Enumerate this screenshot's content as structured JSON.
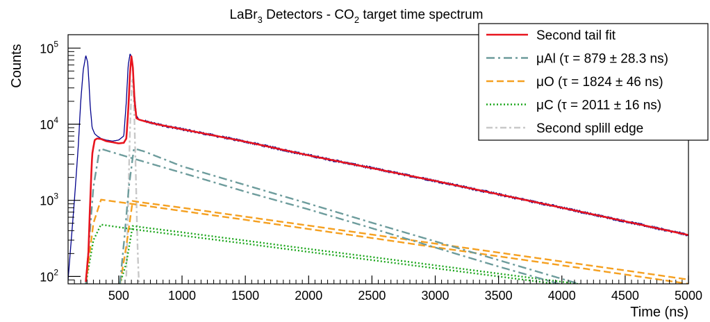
{
  "chart_data": {
    "type": "line",
    "title_main": "LaBr",
    "title_sub": "3",
    "title_mid": " Detectors - CO",
    "title_sub2": "2",
    "title_end": " target time spectrum",
    "xlabel": "Time (ns)",
    "ylabel": "Counts",
    "xlim": [
      100,
      5000
    ],
    "ylim": [
      80,
      150000
    ],
    "y_scale": "log",
    "x_ticks": [
      500,
      1000,
      1500,
      2000,
      2500,
      3000,
      3500,
      4000,
      4500,
      5000
    ],
    "x_tick_labels": [
      "500",
      "1000",
      "1500",
      "2000",
      "2500",
      "3000",
      "3500",
      "4000",
      "4500",
      "5000"
    ],
    "y_major_ticks": [
      100,
      1000,
      10000,
      100000
    ],
    "y_tick_bases": [
      "10",
      "10",
      "10",
      "10"
    ],
    "y_tick_exps": [
      "2",
      "3",
      "4",
      "5"
    ],
    "legend_position": "top-right",
    "colors": {
      "data": "#00008c",
      "fit": "#e8141e",
      "al": "#6d9c9c",
      "o": "#f5a020",
      "c": "#1aa51a",
      "edge": "#c8c8c8"
    },
    "series": [
      {
        "name": "",
        "key": "data",
        "style": "solid-noisy",
        "x": [
          100,
          150,
          180,
          200,
          220,
          240,
          255,
          265,
          275,
          290,
          310,
          330,
          360,
          400,
          450,
          500,
          540,
          560,
          575,
          590,
          605,
          620,
          640,
          660,
          700,
          800,
          1000,
          1500,
          2000,
          2500,
          3000,
          3500,
          4000,
          4500,
          5000
        ],
        "y": [
          90,
          1000,
          5000,
          20000,
          52000,
          80000,
          65000,
          35000,
          17000,
          9000,
          7500,
          7000,
          6500,
          6200,
          6000,
          6200,
          7000,
          20000,
          60000,
          85000,
          70000,
          30000,
          13000,
          11500,
          11000,
          10000,
          8600,
          5900,
          3900,
          2650,
          1800,
          1200,
          800,
          530,
          350
        ]
      },
      {
        "name": "Second tail fit",
        "key": "fit",
        "style": "solid",
        "x": [
          240,
          260,
          275,
          290,
          310,
          330,
          360,
          400,
          450,
          500,
          540,
          560,
          575,
          590,
          600,
          612,
          625,
          640,
          660,
          700,
          800,
          1000,
          1500,
          2000,
          2500,
          3000,
          3500,
          4000,
          4500,
          5000
        ],
        "y": [
          85,
          200,
          1000,
          4000,
          6200,
          6500,
          6400,
          6000,
          5800,
          5600,
          5700,
          6500,
          15000,
          50000,
          78000,
          55000,
          20000,
          12000,
          11500,
          11000,
          10000,
          8600,
          5900,
          3900,
          2650,
          1800,
          1200,
          800,
          530,
          350
        ]
      },
      {
        "name": "μAl (τ = 879 ± 28.3 ns)",
        "key": "al",
        "style": "dashdot",
        "segments": [
          {
            "x": [
              240,
              300,
              350,
              600,
              1000,
              1500,
              2000,
              2500,
              3000,
              3500,
              4000,
              4300
            ],
            "y": [
              80,
              1500,
              4800,
              3600,
              2300,
              1300,
              760,
              430,
              240,
              135,
              78,
              55
            ]
          },
          {
            "x": [
              510,
              550,
              580,
              620,
              700,
              1000,
              1500,
              2000,
              2500,
              3000,
              3500,
              4000,
              4300
            ],
            "y": [
              80,
              400,
              1500,
              4800,
              4400,
              2800,
              1590,
              905,
              508,
              289,
              164,
              93,
              67
            ]
          }
        ]
      },
      {
        "name": "μO (τ = 1824 ± 46 ns)",
        "key": "o",
        "style": "dashed",
        "segments": [
          {
            "x": [
              240,
              300,
              360,
              600,
              1000,
              1500,
              2000,
              2500,
              3000,
              3500,
              4000,
              4500,
              5000
            ],
            "y": [
              80,
              500,
              1020,
              900,
              725,
              555,
              420,
              320,
              242,
              184,
              140,
              106,
              80
            ]
          },
          {
            "x": [
              510,
              560,
              610,
              700,
              1000,
              1500,
              2000,
              2500,
              3000,
              3500,
              4000,
              4500,
              5000
            ],
            "y": [
              80,
              250,
              980,
              930,
              800,
              610,
              466,
              355,
              270,
              206,
              157,
              120,
              91
            ]
          }
        ]
      },
      {
        "name": "μC (τ = 2011 ± 16 ns)",
        "key": "c",
        "style": "dotted",
        "segments": [
          {
            "x": [
              240,
              300,
              360,
              600,
              1000,
              1500,
              2000,
              2500,
              3000,
              3500,
              4000,
              4500,
              5000
            ],
            "y": [
              80,
              300,
              480,
              420,
              345,
              270,
              210,
              164,
              128,
              100,
              78,
              61,
              48
            ]
          },
          {
            "x": [
              510,
              560,
              610,
              700,
              1000,
              1500,
              2000,
              2500,
              3000,
              3500,
              4000,
              4500,
              5000
            ],
            "y": [
              80,
              150,
              460,
              440,
              380,
              296,
              230,
              180,
              140,
              109,
              85,
              66,
              51
            ]
          }
        ]
      },
      {
        "name": "Second splill edge",
        "key": "edge",
        "style": "dashdot-light",
        "x": [
          560,
          590,
          605,
          615,
          625,
          640,
          650,
          660
        ],
        "y": [
          100,
          10000,
          40000,
          35000,
          10000,
          1000,
          200,
          80
        ]
      }
    ]
  }
}
